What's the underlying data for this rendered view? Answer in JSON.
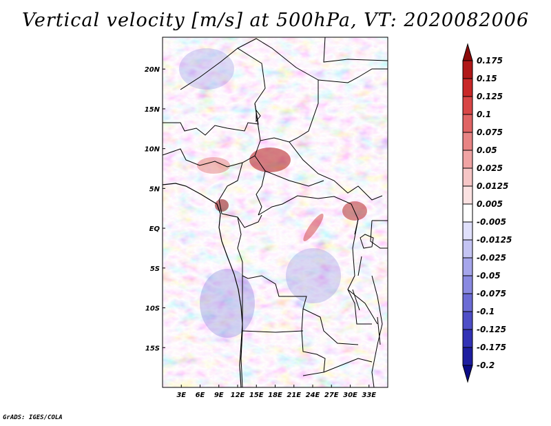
{
  "title": "Vertical velocity [m/s] at 500hPa, VT: 2020082006",
  "credit": "GrADS: IGES/COLA",
  "map": {
    "lon_range": [
      0,
      36
    ],
    "lat_range": [
      -20,
      24
    ],
    "lat_ticks": [
      "20N",
      "15N",
      "10N",
      "5N",
      "EQ",
      "5S",
      "10S",
      "15S"
    ],
    "lat_tick_values": [
      20,
      15,
      10,
      5,
      0,
      -5,
      -10,
      -15
    ],
    "lon_ticks": [
      "3E",
      "6E",
      "9E",
      "12E",
      "15E",
      "18E",
      "21E",
      "24E",
      "27E",
      "30E",
      "33E"
    ],
    "lon_tick_values": [
      3,
      6,
      9,
      12,
      15,
      18,
      21,
      24,
      27,
      30,
      33
    ]
  },
  "colorbar": {
    "labels": [
      "0.175",
      "0.15",
      "0.125",
      "0.1",
      "0.075",
      "0.05",
      "0.025",
      "0.0125",
      "0.005",
      "-0.005",
      "-0.0125",
      "-0.025",
      "-0.05",
      "-0.075",
      "-0.1",
      "-0.125",
      "-0.175",
      "-0.2"
    ],
    "colors": [
      "#8b0a0a",
      "#b01818",
      "#c82828",
      "#d84646",
      "#e06464",
      "#e88484",
      "#f0a4a4",
      "#f6c6c6",
      "#fbe2e2",
      "#ffffff",
      "#e0e0fb",
      "#c4c4f3",
      "#a6a6eb",
      "#8a8ae1",
      "#6c6cd5",
      "#4e4ec7",
      "#3232b5",
      "#1e1ea0",
      "#0c0c86"
    ]
  }
}
